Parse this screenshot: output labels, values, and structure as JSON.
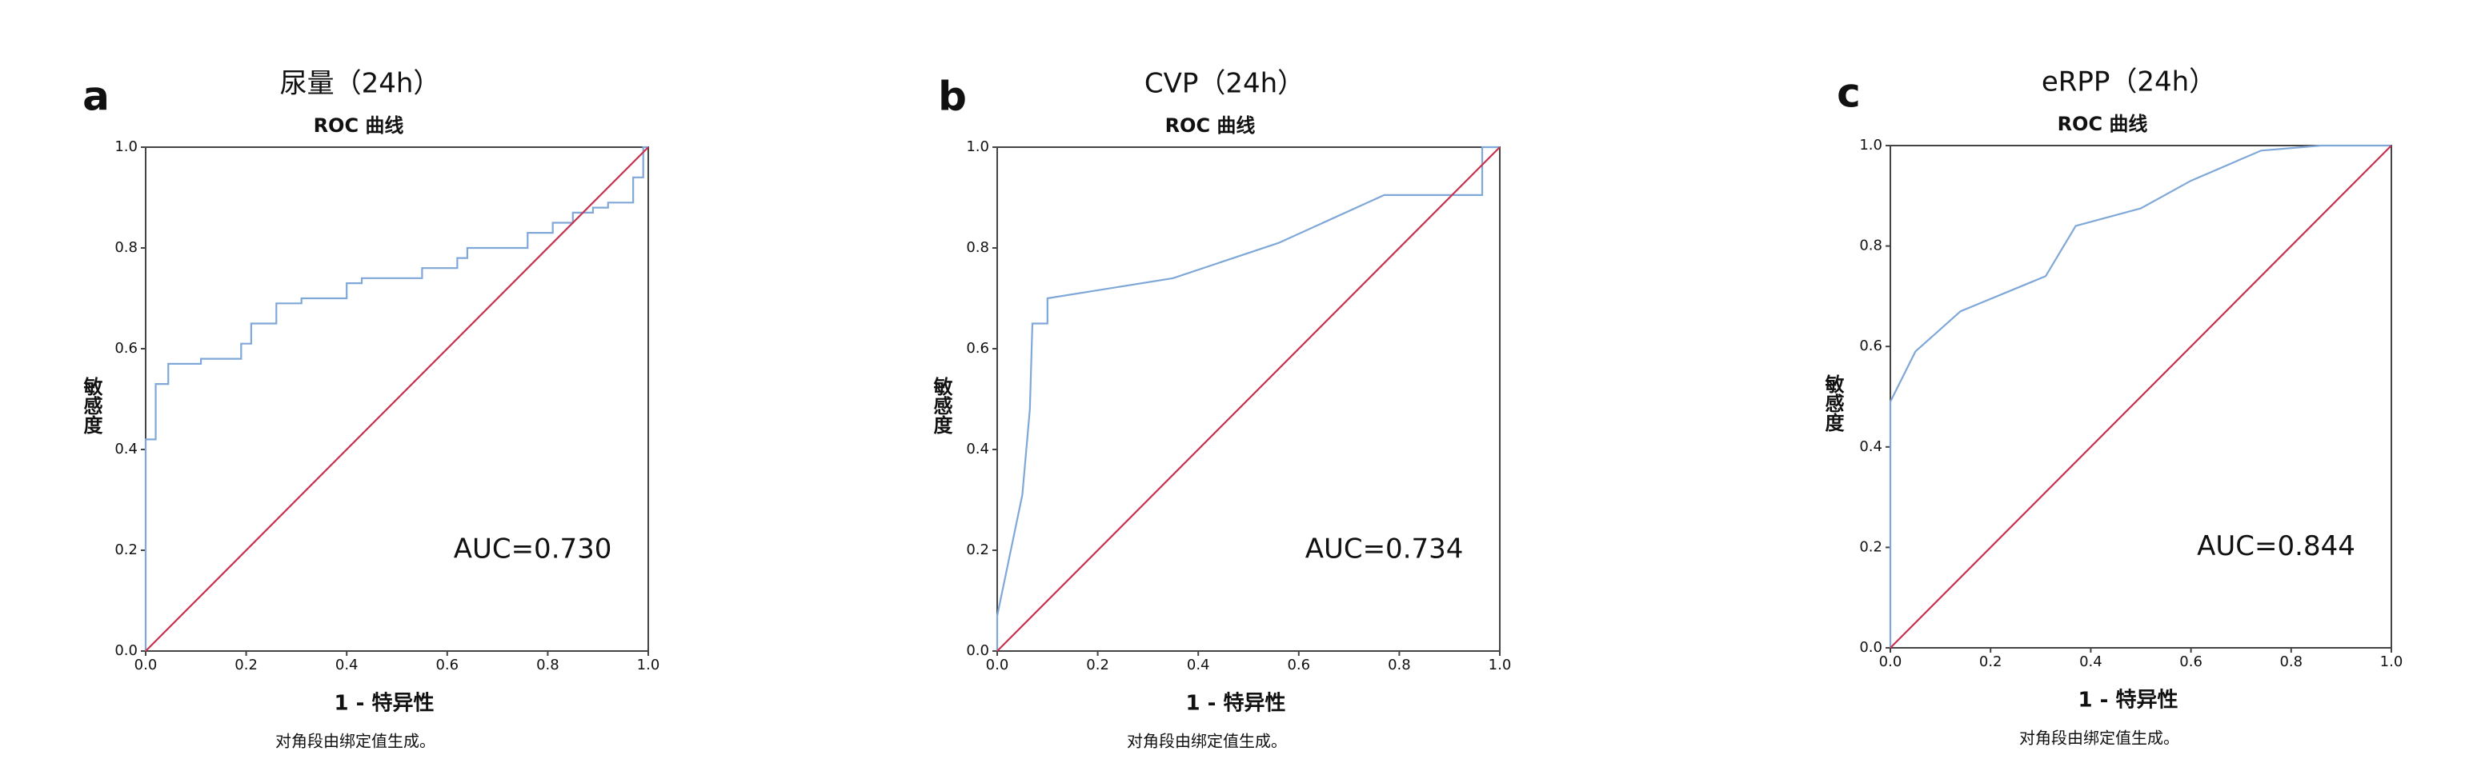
{
  "chart_data": [
    {
      "type": "line",
      "panel_label": "a",
      "title": "尿量（24h）",
      "subtitle": "ROC 曲线",
      "x_label": "1 - 特异性",
      "y_label": "敏感度",
      "annotation": "AUC=0.730",
      "note": "对角段由绑定值生成。",
      "xlim": [
        0,
        1
      ],
      "ylim": [
        0,
        1
      ],
      "xticks": [
        {
          "value": 0,
          "label": "0.0"
        },
        0.2,
        0.4,
        0.6,
        0.8,
        {
          "value": 1,
          "label": "1.0"
        }
      ],
      "yticks": [
        {
          "value": 0,
          "label": "0.0"
        },
        0.2,
        0.4,
        0.6,
        0.8,
        {
          "value": 1,
          "label": "1.0"
        }
      ],
      "series": [
        {
          "color": "#7fa8d8",
          "x": [
            0,
            0,
            0.02,
            0.02,
            0.045,
            0.045,
            0.11,
            0.11,
            0.19,
            0.19,
            0.21,
            0.21,
            0.26,
            0.26,
            0.31,
            0.31,
            0.4,
            0.4,
            0.43,
            0.43,
            0.55,
            0.55,
            0.62,
            0.62,
            0.64,
            0.64,
            0.76,
            0.76,
            0.81,
            0.81,
            0.85,
            0.85,
            0.89,
            0.89,
            0.92,
            0.92,
            0.97,
            0.97,
            0.99,
            0.99,
            1
          ],
          "values": [
            0,
            0.42,
            0.42,
            0.53,
            0.53,
            0.57,
            0.57,
            0.58,
            0.58,
            0.61,
            0.61,
            0.65,
            0.65,
            0.69,
            0.69,
            0.7,
            0.7,
            0.73,
            0.73,
            0.74,
            0.74,
            0.76,
            0.76,
            0.78,
            0.78,
            0.8,
            0.8,
            0.83,
            0.83,
            0.85,
            0.85,
            0.87,
            0.87,
            0.88,
            0.88,
            0.89,
            0.89,
            0.94,
            0.94,
            1,
            1
          ]
        },
        {
          "color": "#c8304e",
          "x": [
            0,
            1
          ],
          "values": [
            0,
            1
          ]
        }
      ]
    },
    {
      "type": "line",
      "panel_label": "b",
      "title": "CVP（24h）",
      "subtitle": "ROC 曲线",
      "x_label": "1 - 特异性",
      "y_label": "敏感度",
      "annotation": "AUC=0.734",
      "note": "对角段由绑定值生成。",
      "xlim": [
        0,
        1
      ],
      "ylim": [
        0,
        1
      ],
      "xticks": [
        {
          "value": 0,
          "label": "0.0"
        },
        0.2,
        0.4,
        0.6,
        0.8,
        {
          "value": 1,
          "label": "1.0"
        }
      ],
      "yticks": [
        {
          "value": 0,
          "label": "0.0"
        },
        0.2,
        0.4,
        0.6,
        0.8,
        {
          "value": 1,
          "label": "1.0"
        }
      ],
      "series": [
        {
          "color": "#7fa8d8",
          "x": [
            0,
            0,
            0.05,
            0.065,
            0.07,
            0.1,
            0.1,
            0.35,
            0.56,
            0.77,
            0.965,
            0.965,
            1
          ],
          "values": [
            0,
            0.07,
            0.31,
            0.48,
            0.65,
            0.65,
            0.7,
            0.74,
            0.81,
            0.905,
            0.905,
            1,
            1
          ]
        },
        {
          "color": "#c8304e",
          "x": [
            0,
            1
          ],
          "values": [
            0,
            1
          ]
        }
      ]
    },
    {
      "type": "line",
      "panel_label": "c",
      "title": "eRPP（24h）",
      "subtitle": "ROC 曲线",
      "x_label": "1 - 特异性",
      "y_label": "敏感度",
      "annotation": "AUC=0.844",
      "note": "对角段由绑定值生成。",
      "xlim": [
        0,
        1
      ],
      "ylim": [
        0,
        1
      ],
      "xticks": [
        {
          "value": 0,
          "label": "0.0"
        },
        0.2,
        0.4,
        0.6,
        0.8,
        {
          "value": 1,
          "label": "1.0"
        }
      ],
      "yticks": [
        {
          "value": 0,
          "label": "0.0"
        },
        0.2,
        0.4,
        0.6,
        0.8,
        {
          "value": 1,
          "label": "1.0"
        }
      ],
      "series": [
        {
          "color": "#7fa8d8",
          "x": [
            0,
            0,
            0.05,
            0.14,
            0.31,
            0.37,
            0.5,
            0.6,
            0.74,
            0.86,
            1
          ],
          "values": [
            0,
            0.49,
            0.59,
            0.67,
            0.74,
            0.84,
            0.875,
            0.93,
            0.99,
            1,
            1
          ]
        },
        {
          "color": "#c8304e",
          "x": [
            0,
            1
          ],
          "values": [
            0,
            1
          ]
        }
      ]
    }
  ]
}
